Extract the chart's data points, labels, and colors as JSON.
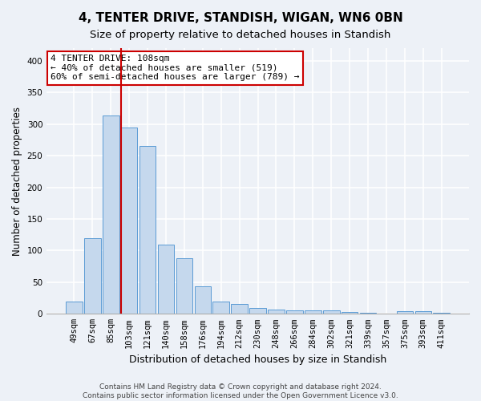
{
  "title": "4, TENTER DRIVE, STANDISH, WIGAN, WN6 0BN",
  "subtitle": "Size of property relative to detached houses in Standish",
  "xlabel": "Distribution of detached houses by size in Standish",
  "ylabel": "Number of detached properties",
  "footer_line1": "Contains HM Land Registry data © Crown copyright and database right 2024.",
  "footer_line2": "Contains public sector information licensed under the Open Government Licence v3.0.",
  "categories": [
    "49sqm",
    "67sqm",
    "85sqm",
    "103sqm",
    "121sqm",
    "140sqm",
    "158sqm",
    "176sqm",
    "194sqm",
    "212sqm",
    "230sqm",
    "248sqm",
    "266sqm",
    "284sqm",
    "302sqm",
    "321sqm",
    "339sqm",
    "357sqm",
    "375sqm",
    "393sqm",
    "411sqm"
  ],
  "values": [
    19,
    120,
    314,
    295,
    265,
    109,
    88,
    44,
    20,
    15,
    9,
    7,
    6,
    5,
    5,
    3,
    2,
    1,
    4,
    4,
    2
  ],
  "bar_color": "#c5d8ed",
  "bar_edge_color": "#5b9bd5",
  "highlight_bar_index": 3,
  "annotation_text": "4 TENTER DRIVE: 108sqm\n← 40% of detached houses are smaller (519)\n60% of semi-detached houses are larger (789) →",
  "annotation_box_color": "#ffffff",
  "annotation_box_edge_color": "#cc0000",
  "red_line_color": "#cc0000",
  "ylim": [
    0,
    420
  ],
  "yticks": [
    0,
    50,
    100,
    150,
    200,
    250,
    300,
    350,
    400
  ],
  "background_color": "#edf1f7",
  "grid_color": "#ffffff",
  "title_fontsize": 11,
  "subtitle_fontsize": 9.5,
  "ylabel_fontsize": 8.5,
  "xlabel_fontsize": 9,
  "tick_fontsize": 7.5,
  "footer_fontsize": 6.5
}
